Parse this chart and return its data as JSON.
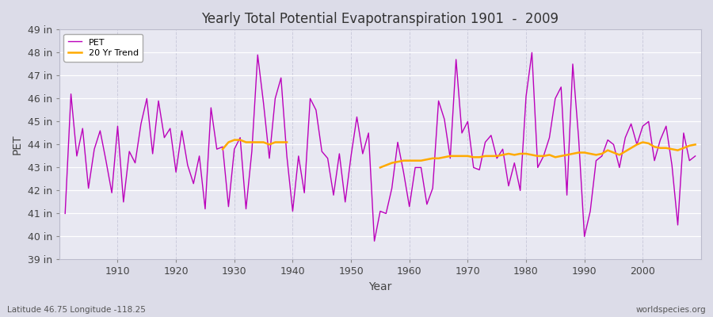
{
  "title": "Yearly Total Potential Evapotranspiration 1901  -  2009",
  "xlabel": "Year",
  "ylabel": "PET",
  "bottom_left": "Latitude 46.75 Longitude -118.25",
  "bottom_right": "worldspecies.org",
  "fig_bg_color": "#dcdce8",
  "plot_bg_color": "#e8e8f2",
  "pet_color": "#bb00bb",
  "trend_color": "#ffaa00",
  "ylim": [
    39,
    49
  ],
  "yticks": [
    39,
    40,
    41,
    42,
    43,
    44,
    45,
    46,
    47,
    48,
    49
  ],
  "xlim": [
    1900,
    2010
  ],
  "years": [
    1901,
    1902,
    1903,
    1904,
    1905,
    1906,
    1907,
    1908,
    1909,
    1910,
    1911,
    1912,
    1913,
    1914,
    1915,
    1916,
    1917,
    1918,
    1919,
    1920,
    1921,
    1922,
    1923,
    1924,
    1925,
    1926,
    1927,
    1928,
    1929,
    1930,
    1931,
    1932,
    1933,
    1934,
    1935,
    1936,
    1937,
    1938,
    1939,
    1940,
    1941,
    1942,
    1943,
    1944,
    1945,
    1946,
    1947,
    1948,
    1949,
    1950,
    1951,
    1952,
    1953,
    1954,
    1955,
    1956,
    1957,
    1958,
    1959,
    1960,
    1961,
    1962,
    1963,
    1964,
    1965,
    1966,
    1967,
    1968,
    1969,
    1970,
    1971,
    1972,
    1973,
    1974,
    1975,
    1976,
    1977,
    1978,
    1979,
    1980,
    1981,
    1982,
    1983,
    1984,
    1985,
    1986,
    1987,
    1988,
    1989,
    1990,
    1991,
    1992,
    1993,
    1994,
    1995,
    1996,
    1997,
    1998,
    1999,
    2000,
    2001,
    2002,
    2003,
    2004,
    2005,
    2006,
    2007,
    2008,
    2009
  ],
  "pet": [
    41.0,
    46.2,
    43.5,
    44.7,
    42.1,
    43.8,
    44.6,
    43.3,
    41.9,
    44.8,
    41.5,
    43.7,
    43.2,
    44.9,
    46.0,
    43.6,
    45.9,
    44.3,
    44.7,
    42.8,
    44.6,
    43.1,
    42.3,
    43.5,
    41.2,
    45.6,
    43.8,
    43.9,
    41.3,
    43.8,
    44.3,
    41.2,
    43.7,
    47.9,
    45.8,
    43.4,
    46.0,
    46.9,
    43.5,
    41.1,
    43.5,
    41.9,
    46.0,
    45.5,
    43.7,
    43.4,
    41.8,
    43.6,
    41.5,
    43.5,
    45.2,
    43.6,
    44.5,
    39.8,
    41.1,
    41.0,
    42.1,
    44.1,
    42.8,
    41.3,
    43.0,
    43.0,
    41.4,
    42.1,
    45.9,
    45.1,
    43.4,
    47.7,
    44.5,
    45.0,
    43.0,
    42.9,
    44.1,
    44.4,
    43.4,
    43.8,
    42.2,
    43.2,
    42.0,
    46.1,
    48.0,
    43.0,
    43.5,
    44.3,
    46.0,
    46.5,
    41.8,
    47.5,
    44.3,
    40.0,
    41.1,
    43.3,
    43.5,
    44.2,
    44.0,
    43.0,
    44.3,
    44.9,
    44.0,
    44.8,
    45.0,
    43.3,
    44.2,
    44.8,
    43.1,
    40.5,
    44.5,
    43.3,
    43.5
  ],
  "trend_seg1_years": [
    1928,
    1929,
    1930,
    1931,
    1932,
    1933,
    1934,
    1935,
    1936,
    1937,
    1938,
    1939
  ],
  "trend_seg1": [
    43.8,
    44.1,
    44.2,
    44.2,
    44.1,
    44.1,
    44.1,
    44.1,
    44.0,
    44.1,
    44.1,
    44.1
  ],
  "trend_seg2_years": [
    1955,
    1956,
    1957,
    1958,
    1959,
    1960,
    1961,
    1962,
    1963,
    1964,
    1965,
    1966,
    1967,
    1968,
    1969,
    1970,
    1971,
    1972,
    1973,
    1974,
    1975,
    1976,
    1977,
    1978,
    1979,
    1980,
    1981,
    1982,
    1983,
    1984,
    1985,
    1986,
    1987,
    1988,
    1989,
    1990,
    1991,
    1992,
    1993,
    1994,
    1995,
    1996,
    1997,
    1998,
    1999,
    2000,
    2001,
    2002,
    2003,
    2004,
    2005,
    2006,
    2007,
    2008,
    2009
  ],
  "trend_seg2": [
    43.0,
    43.1,
    43.2,
    43.25,
    43.3,
    43.3,
    43.3,
    43.3,
    43.35,
    43.4,
    43.4,
    43.45,
    43.5,
    43.5,
    43.5,
    43.5,
    43.45,
    43.45,
    43.5,
    43.5,
    43.5,
    43.55,
    43.6,
    43.55,
    43.6,
    43.6,
    43.55,
    43.5,
    43.5,
    43.55,
    43.45,
    43.5,
    43.55,
    43.6,
    43.65,
    43.65,
    43.6,
    43.55,
    43.6,
    43.75,
    43.65,
    43.55,
    43.7,
    43.85,
    44.0,
    44.1,
    44.05,
    43.9,
    43.85,
    43.85,
    43.8,
    43.75,
    43.85,
    43.95,
    44.0
  ]
}
